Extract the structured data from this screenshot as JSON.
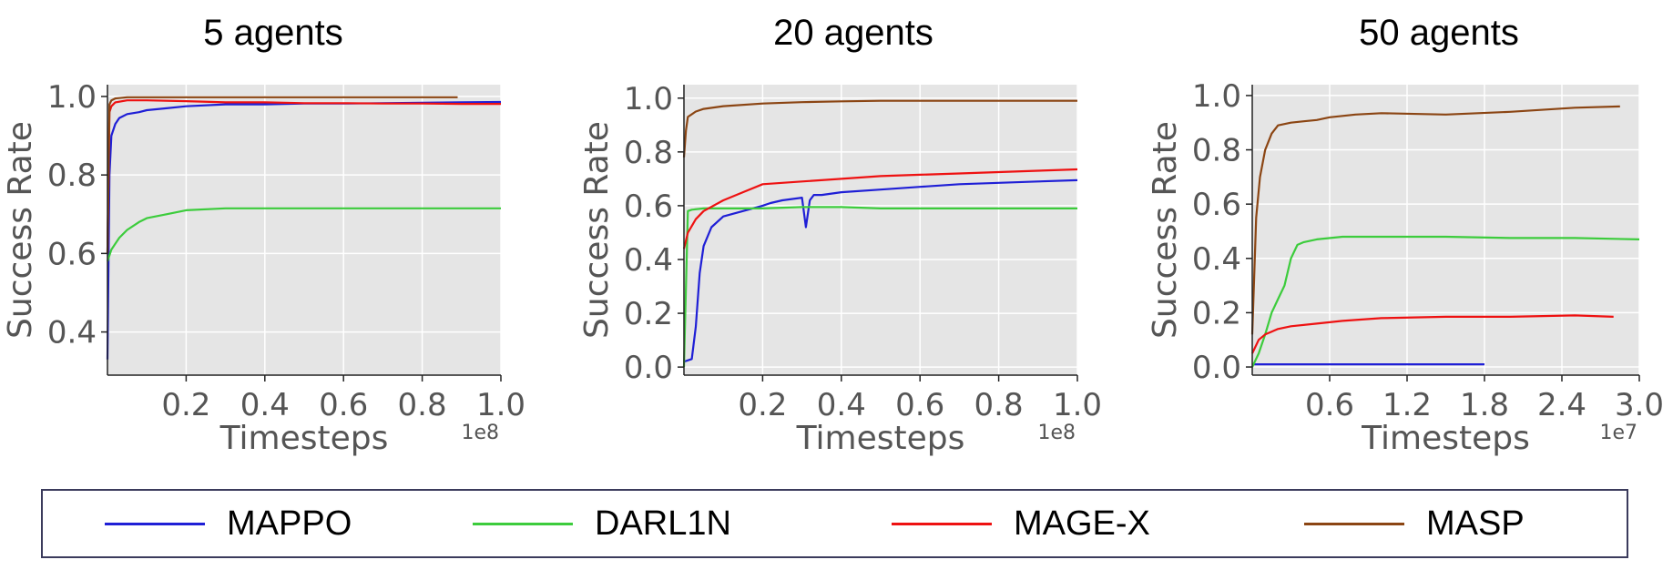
{
  "legend": [
    {
      "name": "MAPPO",
      "color": "#1f1fd6"
    },
    {
      "name": "DARL1N",
      "color": "#3ccc3c"
    },
    {
      "name": "MAGE-X",
      "color": "#ee1111"
    },
    {
      "name": "MASP",
      "color": "#8b4513"
    }
  ],
  "chart_data": [
    {
      "type": "line",
      "title": "5 agents",
      "xlabel": "Timesteps",
      "ylabel": "Success Rate",
      "x_offset_label": "1e8",
      "xlim": [
        0,
        1.0
      ],
      "ylim": [
        0.29,
        1.03
      ],
      "xticks": [
        0.2,
        0.4,
        0.6,
        0.8,
        1.0
      ],
      "xtick_labels": [
        "0.2",
        "0.4",
        "0.6",
        "0.8",
        "1.0"
      ],
      "yticks": [
        0.4,
        0.6,
        0.8,
        1.0
      ],
      "ytick_labels": [
        "0.4",
        "0.6",
        "0.8",
        "1.0"
      ],
      "grid": true,
      "series": [
        {
          "name": "MAPPO",
          "x": [
            0,
            0.005,
            0.01,
            0.02,
            0.03,
            0.05,
            0.08,
            0.1,
            0.15,
            0.2,
            0.3,
            0.4,
            0.5,
            0.6,
            0.7,
            0.8,
            0.9,
            1.0
          ],
          "y": [
            0.33,
            0.8,
            0.9,
            0.93,
            0.945,
            0.955,
            0.96,
            0.965,
            0.97,
            0.975,
            0.98,
            0.98,
            0.982,
            0.982,
            0.983,
            0.984,
            0.985,
            0.986
          ]
        },
        {
          "name": "DARL1N",
          "x": [
            0,
            0.01,
            0.03,
            0.05,
            0.08,
            0.1,
            0.15,
            0.2,
            0.3,
            0.4,
            0.5,
            0.6,
            0.7,
            0.8,
            0.9,
            1.0
          ],
          "y": [
            0.58,
            0.61,
            0.64,
            0.66,
            0.68,
            0.69,
            0.7,
            0.71,
            0.715,
            0.715,
            0.715,
            0.715,
            0.715,
            0.715,
            0.715,
            0.715
          ]
        },
        {
          "name": "MAGE-X",
          "x": [
            0,
            0.005,
            0.01,
            0.02,
            0.05,
            0.1,
            0.2,
            0.3,
            0.4,
            0.5,
            0.6,
            0.7,
            0.8,
            0.9,
            1.0
          ],
          "y": [
            0.6,
            0.96,
            0.975,
            0.985,
            0.99,
            0.99,
            0.988,
            0.985,
            0.985,
            0.983,
            0.983,
            0.982,
            0.982,
            0.981,
            0.981
          ]
        },
        {
          "name": "MASP",
          "x": [
            0,
            0.005,
            0.01,
            0.02,
            0.05,
            0.1,
            0.2,
            0.4,
            0.6,
            0.8,
            0.89
          ],
          "y": [
            0.6,
            0.98,
            0.99,
            0.995,
            0.998,
            0.998,
            0.998,
            0.998,
            0.998,
            0.998,
            0.998
          ]
        }
      ]
    },
    {
      "type": "line",
      "title": "20 agents",
      "xlabel": "Timesteps",
      "ylabel": "Success Rate",
      "x_offset_label": "1e8",
      "xlim": [
        0,
        1.0
      ],
      "ylim": [
        -0.03,
        1.05
      ],
      "xticks": [
        0.2,
        0.4,
        0.6,
        0.8,
        1.0
      ],
      "xtick_labels": [
        "0.2",
        "0.4",
        "0.6",
        "0.8",
        "1.0"
      ],
      "yticks": [
        0.0,
        0.2,
        0.4,
        0.6,
        0.8,
        1.0
      ],
      "ytick_labels": [
        "0.0",
        "0.2",
        "0.4",
        "0.6",
        "0.8",
        "1.0"
      ],
      "grid": true,
      "series": [
        {
          "name": "MAPPO",
          "x": [
            0,
            0.02,
            0.03,
            0.04,
            0.05,
            0.07,
            0.1,
            0.15,
            0.2,
            0.22,
            0.25,
            0.3,
            0.31,
            0.32,
            0.33,
            0.35,
            0.4,
            0.5,
            0.6,
            0.7,
            0.8,
            0.9,
            1.0
          ],
          "y": [
            0.02,
            0.03,
            0.15,
            0.35,
            0.45,
            0.52,
            0.56,
            0.58,
            0.6,
            0.61,
            0.62,
            0.63,
            0.52,
            0.62,
            0.64,
            0.64,
            0.65,
            0.66,
            0.67,
            0.68,
            0.685,
            0.69,
            0.695
          ]
        },
        {
          "name": "DARL1N",
          "x": [
            0,
            0.01,
            0.02,
            0.05,
            0.1,
            0.2,
            0.3,
            0.4,
            0.5,
            0.6,
            0.7,
            0.8,
            0.9,
            1.0
          ],
          "y": [
            0.0,
            0.58,
            0.585,
            0.59,
            0.59,
            0.59,
            0.595,
            0.595,
            0.59,
            0.59,
            0.59,
            0.59,
            0.59,
            0.59
          ]
        },
        {
          "name": "MAGE-X",
          "x": [
            0,
            0.01,
            0.03,
            0.05,
            0.1,
            0.15,
            0.2,
            0.3,
            0.4,
            0.5,
            0.6,
            0.7,
            0.8,
            0.9,
            1.0
          ],
          "y": [
            0.44,
            0.5,
            0.55,
            0.58,
            0.62,
            0.65,
            0.68,
            0.69,
            0.7,
            0.71,
            0.715,
            0.72,
            0.725,
            0.73,
            0.735
          ]
        },
        {
          "name": "MASP",
          "x": [
            0,
            0.005,
            0.01,
            0.03,
            0.05,
            0.1,
            0.2,
            0.3,
            0.4,
            0.5,
            0.6,
            0.7,
            0.8,
            0.9,
            1.0
          ],
          "y": [
            0.78,
            0.88,
            0.93,
            0.95,
            0.96,
            0.97,
            0.98,
            0.985,
            0.988,
            0.99,
            0.99,
            0.99,
            0.99,
            0.99,
            0.99
          ]
        }
      ]
    },
    {
      "type": "line",
      "title": "50 agents",
      "xlabel": "Timesteps",
      "ylabel": "Success Rate",
      "x_offset_label": "1e7",
      "xlim": [
        0,
        3.0
      ],
      "ylim": [
        -0.03,
        1.04
      ],
      "xticks": [
        0.6,
        1.2,
        1.8,
        2.4,
        3.0
      ],
      "xtick_labels": [
        "0.6",
        "1.2",
        "1.8",
        "2.4",
        "3.0"
      ],
      "yticks": [
        0.0,
        0.2,
        0.4,
        0.6,
        0.8,
        1.0
      ],
      "ytick_labels": [
        "0.0",
        "0.2",
        "0.4",
        "0.6",
        "0.8",
        "1.0"
      ],
      "grid": true,
      "series": [
        {
          "name": "MAPPO",
          "x": [
            0,
            0.2,
            0.5,
            1.0,
            1.5,
            1.8
          ],
          "y": [
            0.01,
            0.01,
            0.01,
            0.01,
            0.01,
            0.01
          ]
        },
        {
          "name": "DARL1N",
          "x": [
            0,
            0.05,
            0.1,
            0.15,
            0.2,
            0.25,
            0.3,
            0.35,
            0.4,
            0.5,
            0.7,
            1.0,
            1.5,
            2.0,
            2.5,
            3.0
          ],
          "y": [
            0.0,
            0.05,
            0.12,
            0.2,
            0.25,
            0.3,
            0.4,
            0.45,
            0.46,
            0.47,
            0.48,
            0.48,
            0.48,
            0.475,
            0.475,
            0.47
          ]
        },
        {
          "name": "MAGE-X",
          "x": [
            0,
            0.05,
            0.1,
            0.2,
            0.3,
            0.5,
            0.7,
            1.0,
            1.5,
            2.0,
            2.5,
            2.8
          ],
          "y": [
            0.05,
            0.1,
            0.12,
            0.14,
            0.15,
            0.16,
            0.17,
            0.18,
            0.185,
            0.185,
            0.19,
            0.185
          ]
        },
        {
          "name": "MASP",
          "x": [
            0,
            0.03,
            0.06,
            0.1,
            0.15,
            0.2,
            0.3,
            0.4,
            0.5,
            0.6,
            0.8,
            1.0,
            1.5,
            2.0,
            2.5,
            2.85
          ],
          "y": [
            0.12,
            0.55,
            0.7,
            0.8,
            0.86,
            0.89,
            0.9,
            0.905,
            0.91,
            0.92,
            0.93,
            0.935,
            0.93,
            0.94,
            0.955,
            0.96
          ]
        }
      ]
    }
  ]
}
